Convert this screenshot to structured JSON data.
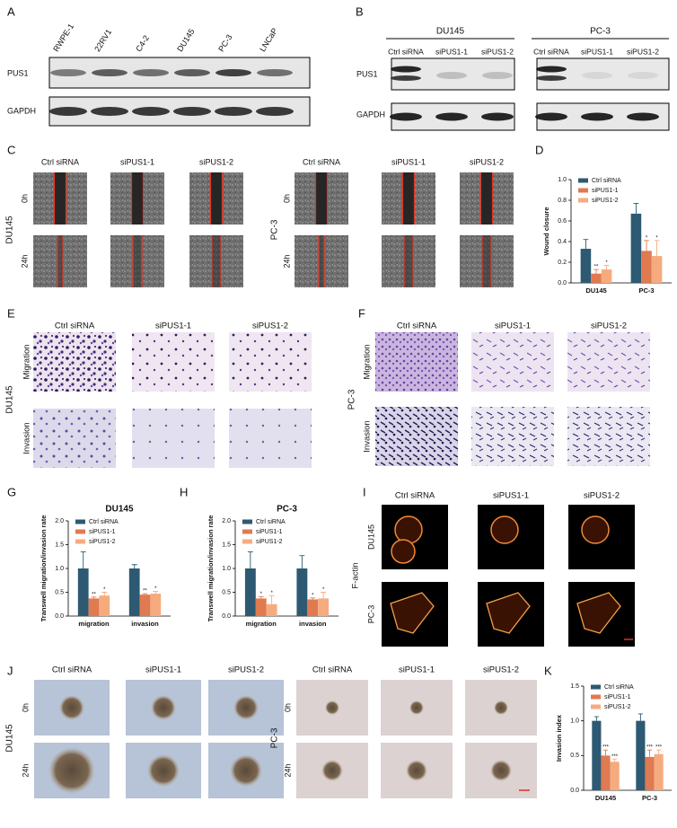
{
  "panels": {
    "A": {
      "letter": "A",
      "lanes": [
        "RWPE-1",
        "22RV1",
        "C4-2",
        "DU145",
        "PC-3",
        "LNCaP"
      ],
      "rows": [
        "PUS1",
        "GAPDH"
      ]
    },
    "B": {
      "letter": "B",
      "groups": [
        {
          "name": "DU145",
          "lanes": [
            "Ctrl siRNA",
            "siPUS1-1",
            "siPUS1-2"
          ]
        },
        {
          "name": "PC-3",
          "lanes": [
            "Ctrl siRNA",
            "siPUS1-1",
            "siPUS1-2"
          ]
        }
      ],
      "rows": [
        "PUS1",
        "GAPDH"
      ]
    },
    "C": {
      "letter": "C",
      "groups": [
        {
          "cell": "DU145",
          "columns": [
            "Ctrl siRNA",
            "siPUS1-1",
            "siPUS1-2"
          ]
        },
        {
          "cell": "PC-3",
          "columns": [
            "Ctrl siRNA",
            "siPUS1-1",
            "siPUS1-2"
          ]
        }
      ],
      "rows": [
        "0h",
        "24h"
      ]
    },
    "E": {
      "letter": "E",
      "cell": "DU145",
      "columns": [
        "Ctrl siRNA",
        "siPUS1-1",
        "siPUS1-2"
      ],
      "rows": [
        "Migration",
        "Invasion"
      ]
    },
    "F": {
      "letter": "F",
      "cell": "PC-3",
      "columns": [
        "Ctrl siRNA",
        "siPUS1-1",
        "siPUS1-2"
      ],
      "rows": [
        "Migration",
        "Invasion"
      ]
    },
    "I": {
      "letter": "I",
      "stain": "F-actin",
      "columns": [
        "Ctrl siRNA",
        "siPUS1-1",
        "siPUS1-2"
      ],
      "rows": [
        "DU145",
        "PC-3"
      ]
    },
    "J": {
      "letter": "J",
      "groups": [
        {
          "cell": "DU145",
          "columns": [
            "Ctrl siRNA",
            "siPUS1-1",
            "siPUS1-2"
          ]
        },
        {
          "cell": "PC-3",
          "columns": [
            "Ctrl siRNA",
            "siPUS1-1",
            "siPUS1-2"
          ]
        }
      ],
      "rows": [
        "0h",
        "24h"
      ]
    }
  },
  "chart_data": [
    {
      "type": "bar",
      "panel_label": "D",
      "ylabel": "Wound closure",
      "categories": [
        "DU145",
        "PC-3"
      ],
      "ylim": [
        0,
        1
      ],
      "yticks": [
        {
          "value": 0,
          "label": "0.0"
        },
        0.2,
        0.4,
        0.6,
        0.8,
        {
          "value": 1,
          "label": "1.0"
        }
      ],
      "legend": "upper left",
      "series": [
        {
          "name": "Ctrl siRNA",
          "color": "#2d5a72",
          "values": [
            0.33,
            0.67
          ],
          "errors": [
            0.09,
            0.1
          ]
        },
        {
          "name": "siPUS1-1",
          "color": "#e07a50",
          "values": [
            0.09,
            0.31
          ],
          "errors": [
            0.04,
            0.1
          ],
          "significance": [
            "**",
            "*"
          ]
        },
        {
          "name": "siPUS1-2",
          "color": "#f6ab7e",
          "values": [
            0.13,
            0.26
          ],
          "errors": [
            0.04,
            0.15
          ],
          "significance": [
            "*",
            "*"
          ]
        }
      ]
    },
    {
      "type": "bar",
      "panel_label": "G",
      "title": "DU145",
      "ylabel": "Transwell migration/invasion rate",
      "categories": [
        "migration",
        "invasion"
      ],
      "ylim": [
        0,
        2
      ],
      "yticks": [
        {
          "value": 0,
          "label": "0.0"
        },
        0.5,
        {
          "value": 1,
          "label": "1.0"
        },
        1.5,
        {
          "value": 2,
          "label": "2.0"
        }
      ],
      "legend": "upper left",
      "series": [
        {
          "name": "Ctrl siRNA",
          "color": "#2d5a72",
          "values": [
            1.0,
            1.0
          ],
          "errors": [
            0.35,
            0.08
          ]
        },
        {
          "name": "siPUS1-1",
          "color": "#e07a50",
          "values": [
            0.37,
            0.45
          ],
          "errors": [
            0.03,
            0.02
          ],
          "significance": [
            "**",
            "**"
          ]
        },
        {
          "name": "siPUS1-2",
          "color": "#f6ab7e",
          "values": [
            0.43,
            0.47
          ],
          "errors": [
            0.07,
            0.05
          ],
          "significance": [
            "*",
            "*"
          ]
        }
      ]
    },
    {
      "type": "bar",
      "panel_label": "H",
      "title": "PC-3",
      "ylabel": "Transwell migration/invasion rate",
      "categories": [
        "migration",
        "invasion"
      ],
      "ylim": [
        0,
        2
      ],
      "yticks": [
        {
          "value": 0,
          "label": "0.0"
        },
        0.5,
        {
          "value": 1,
          "label": "1.0"
        },
        1.5,
        {
          "value": 2,
          "label": "2.0"
        }
      ],
      "legend": "upper left",
      "series": [
        {
          "name": "Ctrl siRNA",
          "color": "#2d5a72",
          "values": [
            1.0,
            1.0
          ],
          "errors": [
            0.35,
            0.27
          ]
        },
        {
          "name": "siPUS1-1",
          "color": "#e07a50",
          "values": [
            0.37,
            0.35
          ],
          "errors": [
            0.04,
            0.03
          ],
          "significance": [
            "*",
            "*"
          ]
        },
        {
          "name": "siPUS1-2",
          "color": "#f6ab7e",
          "values": [
            0.25,
            0.37
          ],
          "errors": [
            0.18,
            0.13
          ],
          "significance": [
            "*",
            "*"
          ]
        }
      ]
    },
    {
      "type": "bar",
      "panel_label": "K",
      "ylabel": "Invasion index",
      "categories": [
        "DU145",
        "PC-3"
      ],
      "ylim": [
        0,
        1.5
      ],
      "yticks": [
        {
          "value": 0,
          "label": "0.0"
        },
        0.5,
        {
          "value": 1,
          "label": "1.0"
        },
        1.5
      ],
      "legend": "upper left",
      "series": [
        {
          "name": "Ctrl siRNA",
          "color": "#2d5a72",
          "values": [
            1.0,
            1.0
          ],
          "errors": [
            0.06,
            0.1
          ]
        },
        {
          "name": "siPUS1-1",
          "color": "#e07a50",
          "values": [
            0.5,
            0.48
          ],
          "errors": [
            0.08,
            0.1
          ],
          "significance": [
            "***",
            "***"
          ]
        },
        {
          "name": "siPUS1-2",
          "color": "#f6ab7e",
          "values": [
            0.41,
            0.52
          ],
          "errors": [
            0.04,
            0.06
          ],
          "significance": [
            "***",
            "***"
          ]
        }
      ]
    }
  ]
}
